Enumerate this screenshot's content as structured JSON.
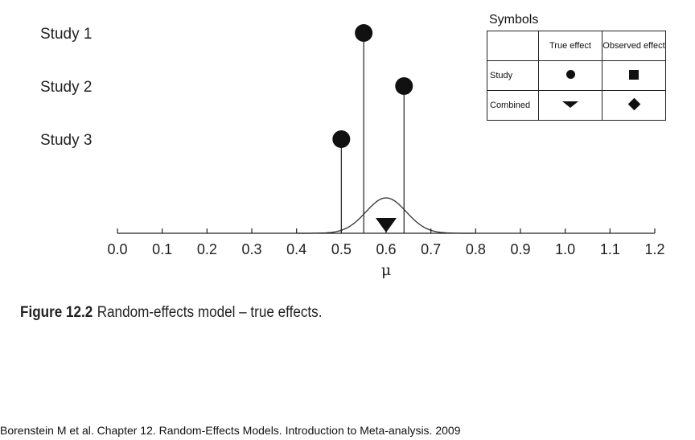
{
  "chart_data": {
    "type": "scatter",
    "title": "",
    "xlabel": "μ",
    "xlim": [
      0.0,
      1.2
    ],
    "x_ticks": [
      "0.0",
      "0.1",
      "0.2",
      "0.3",
      "0.4",
      "0.5",
      "0.6",
      "0.7",
      "0.8",
      "0.9",
      "1.0",
      "1.1",
      "1.2"
    ],
    "studies": [
      {
        "label": "Study 1",
        "true_effect": 0.55
      },
      {
        "label": "Study 2",
        "true_effect": 0.64
      },
      {
        "label": "Study 3",
        "true_effect": 0.5
      }
    ],
    "combined_true_effect": 0.6,
    "distribution": {
      "mean": 0.6,
      "sd": 0.045
    }
  },
  "legend": {
    "title": "Symbols",
    "col_true": "True effect",
    "col_observed": "Observed effect",
    "row_study": "Study",
    "row_combined": "Combined"
  },
  "caption": {
    "figure_number": "Figure 12.2",
    "text": "Random-effects model – true effects."
  },
  "source": "Borenstein M et al. Chapter 12. Random-Effects Models. Introduction to Meta-analysis. 2009",
  "colors": {
    "ink": "#111111",
    "background": "#ffffff"
  }
}
